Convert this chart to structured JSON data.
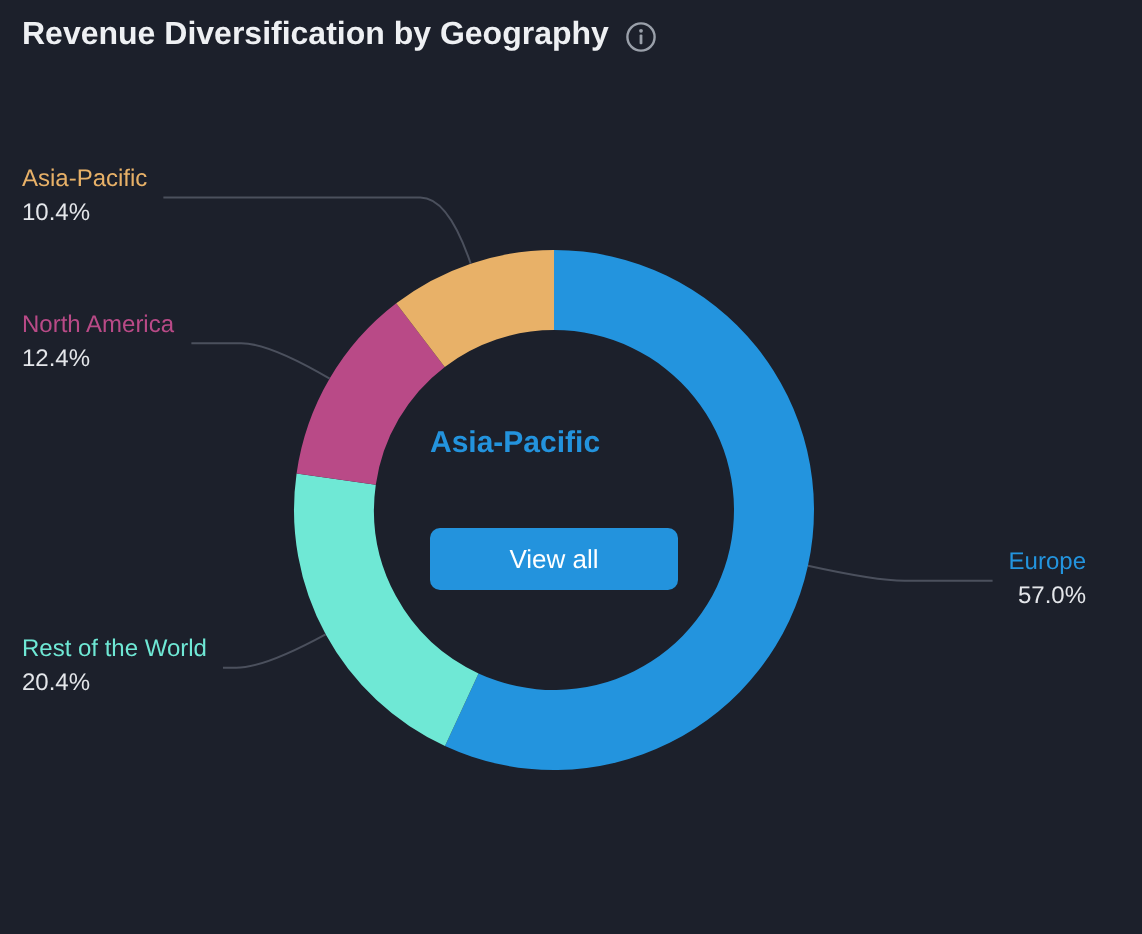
{
  "chart_data": {
    "type": "donut",
    "title": "Revenue Diversification by Geography",
    "categories": [
      "Europe",
      "Rest of the World",
      "North America",
      "Asia-Pacific"
    ],
    "values": [
      57.0,
      20.4,
      12.4,
      10.4
    ],
    "colors": [
      "#2394de",
      "#6fe8d5",
      "#b94a87",
      "#e8b168"
    ],
    "value_labels": [
      "57.0%",
      "20.4%",
      "12.4%",
      "10.4%"
    ],
    "annotations": [
      "Asia-Pacific",
      "View all"
    ]
  }
}
